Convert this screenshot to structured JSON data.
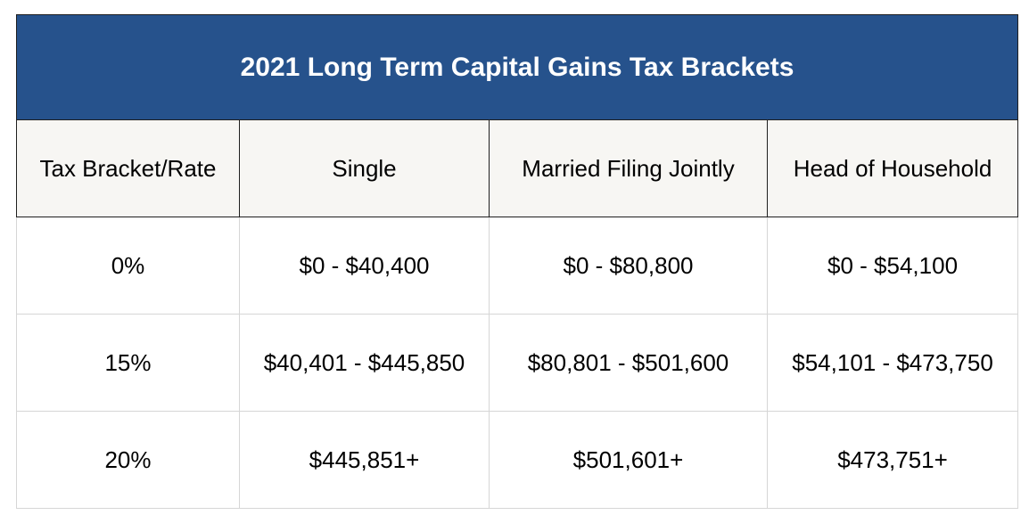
{
  "title": "2021 Long Term Capital Gains Tax Brackets",
  "columns": [
    "Tax Bracket/Rate",
    "Single",
    "Married Filing Jointly",
    "Head of Household"
  ],
  "rows": [
    [
      "0%",
      "$0 - $40,400",
      "$0 - $80,800",
      "$0 - $54,100"
    ],
    [
      "15%",
      "$40,401 - $445,850",
      "$80,801 - $501,600",
      "$54,101 - $473,750"
    ],
    [
      "20%",
      "$445,851+",
      "$501,601+",
      "$473,751+"
    ]
  ],
  "colors": {
    "title_background": "#26528c",
    "title_text": "#ffffff",
    "header_background": "#f7f6f3"
  }
}
